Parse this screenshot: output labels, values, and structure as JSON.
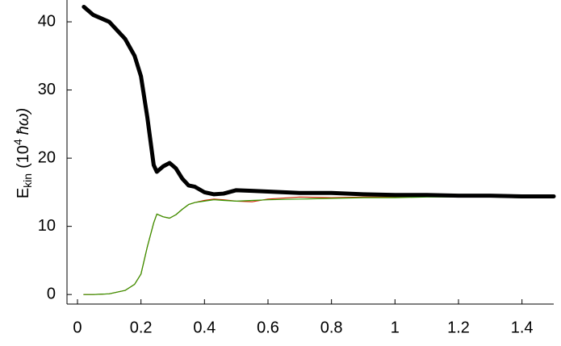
{
  "chart_data": {
    "type": "line",
    "y_label": {
      "base": "E",
      "sub": "kin",
      "mid": "(10",
      "sup": "4",
      "end": "ħω)"
    },
    "x": [
      0.02,
      0.05,
      0.1,
      0.15,
      0.18,
      0.2,
      0.22,
      0.24,
      0.25,
      0.27,
      0.29,
      0.31,
      0.33,
      0.35,
      0.37,
      0.4,
      0.43,
      0.46,
      0.5,
      0.55,
      0.6,
      0.7,
      0.8,
      0.9,
      1.0,
      1.1,
      1.2,
      1.3,
      1.4,
      1.5
    ],
    "series": [
      {
        "color": "#cc2200",
        "width": 1.2,
        "values": [
          0,
          0,
          0.1,
          0.6,
          1.5,
          3,
          7,
          10.5,
          11.8,
          11.4,
          11.2,
          11.7,
          12.5,
          13.2,
          13.5,
          13.8,
          14,
          13.9,
          13.7,
          13.6,
          14.0,
          14.3,
          14.2,
          14.3,
          14.3,
          14.4,
          14.4,
          14.3,
          14.3,
          14.3
        ]
      },
      {
        "color": "#339900",
        "width": 1.2,
        "values": [
          0,
          0,
          0.1,
          0.6,
          1.5,
          3,
          7,
          10.5,
          11.8,
          11.4,
          11.2,
          11.7,
          12.5,
          13.2,
          13.5,
          13.7,
          13.9,
          13.8,
          13.7,
          13.8,
          13.9,
          14,
          14.1,
          14.2,
          14.2,
          14.3,
          14.3,
          14.3,
          14.2,
          14.2
        ]
      },
      {
        "color": "#000000",
        "width": 5,
        "values": [
          42.2,
          41,
          40,
          37.5,
          35,
          32,
          26,
          19,
          18,
          18.8,
          19.3,
          18.5,
          17,
          16,
          15.8,
          15,
          14.7,
          14.8,
          15.3,
          15.2,
          15.1,
          14.9,
          14.9,
          14.7,
          14.6,
          14.6,
          14.5,
          14.5,
          14.4,
          14.4
        ]
      }
    ],
    "xlim": [
      -0.033,
      1.5
    ],
    "ylim": [
      -1.4,
      43.2
    ],
    "xticks": [
      {
        "value": 0,
        "label": "0"
      },
      0.2,
      0.4,
      0.6,
      0.8,
      1,
      1.2,
      1.4
    ],
    "yticks": [
      0,
      10,
      20,
      30,
      40
    ]
  }
}
